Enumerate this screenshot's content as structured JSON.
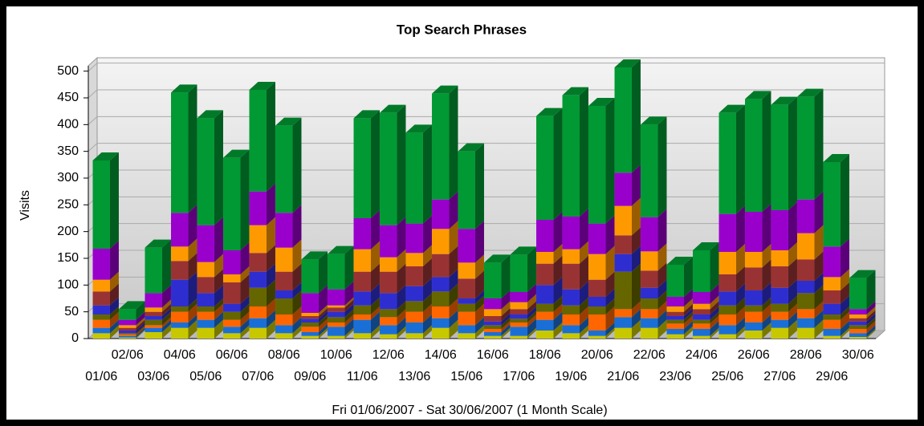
{
  "chart_data": {
    "type": "bar3d-stacked",
    "title": "Top Search Phrases",
    "y_label": "Visits",
    "x_label": "Fri 01/06/2007 - Sat 30/06/2007 (1 Month Scale)",
    "categories": [
      "01/06",
      "02/06",
      "03/06",
      "04/06",
      "05/06",
      "06/06",
      "07/06",
      "08/06",
      "09/06",
      "10/06",
      "11/06",
      "12/06",
      "13/06",
      "14/06",
      "15/06",
      "16/06",
      "17/06",
      "18/06",
      "19/06",
      "20/06",
      "21/06",
      "22/06",
      "23/06",
      "24/06",
      "25/06",
      "26/06",
      "27/06",
      "28/06",
      "29/06",
      "30/06"
    ],
    "ylim": [
      0,
      510
    ],
    "yticks": [
      0,
      50,
      100,
      150,
      200,
      250,
      300,
      350,
      400,
      450,
      500
    ],
    "grid": true,
    "series": [
      {
        "color": "#c8c800",
        "values": [
          10,
          2,
          12,
          20,
          20,
          10,
          20,
          10,
          5,
          5,
          10,
          8,
          10,
          20,
          10,
          5,
          5,
          15,
          10,
          5,
          20,
          20,
          8,
          5,
          8,
          15,
          20,
          20,
          5,
          3
        ]
      },
      {
        "color": "#1a6fd6",
        "values": [
          10,
          3,
          8,
          10,
          15,
          12,
          18,
          15,
          7,
          17,
          25,
          17,
          20,
          18,
          15,
          7,
          17,
          20,
          15,
          10,
          20,
          18,
          10,
          13,
          17,
          15,
          15,
          18,
          13,
          7
        ]
      },
      {
        "color": "#ff6600",
        "values": [
          15,
          3,
          5,
          20,
          15,
          13,
          22,
          20,
          10,
          8,
          10,
          15,
          20,
          22,
          25,
          6,
          8,
          15,
          20,
          30,
          15,
          17,
          10,
          10,
          20,
          20,
          15,
          17,
          17,
          8
        ]
      },
      {
        "color": "#666600",
        "values": [
          10,
          2,
          10,
          10,
          10,
          15,
          35,
          30,
          8,
          10,
          17,
          15,
          20,
          28,
          15,
          7,
          7,
          15,
          17,
          15,
          70,
          20,
          7,
          7,
          17,
          12,
          15,
          30,
          10,
          7
        ]
      },
      {
        "color": "#2e2ed0",
        "values": [
          17,
          5,
          7,
          50,
          25,
          15,
          30,
          15,
          7,
          10,
          26,
          30,
          28,
          27,
          10,
          7,
          8,
          35,
          30,
          18,
          33,
          20,
          7,
          10,
          26,
          28,
          30,
          23,
          20,
          7
        ]
      },
      {
        "color": "#993333",
        "values": [
          26,
          5,
          8,
          35,
          30,
          40,
          35,
          35,
          5,
          8,
          37,
          40,
          37,
          43,
          37,
          10,
          10,
          40,
          48,
          32,
          35,
          32,
          8,
          10,
          32,
          43,
          40,
          40,
          25,
          6
        ]
      },
      {
        "color": "#ff9900",
        "values": [
          22,
          5,
          8,
          27,
          28,
          15,
          52,
          45,
          6,
          4,
          42,
          27,
          25,
          47,
          30,
          13,
          13,
          22,
          27,
          48,
          55,
          36,
          10,
          10,
          42,
          29,
          30,
          49,
          25,
          7
        ]
      },
      {
        "color": "#9900cc",
        "values": [
          58,
          10,
          27,
          63,
          69,
          45,
          63,
          65,
          37,
          30,
          58,
          60,
          55,
          55,
          63,
          20,
          19,
          60,
          61,
          57,
          62,
          64,
          18,
          22,
          71,
          75,
          75,
          63,
          57,
          10
        ]
      },
      {
        "color": "#009933",
        "values": [
          165,
          20,
          85,
          225,
          200,
          173,
          190,
          163,
          63,
          66,
          187,
          210,
          170,
          198,
          145,
          67,
          70,
          194,
          227,
          220,
          197,
          173,
          60,
          78,
          189,
          211,
          197,
          192,
          158,
          58
        ]
      }
    ]
  }
}
